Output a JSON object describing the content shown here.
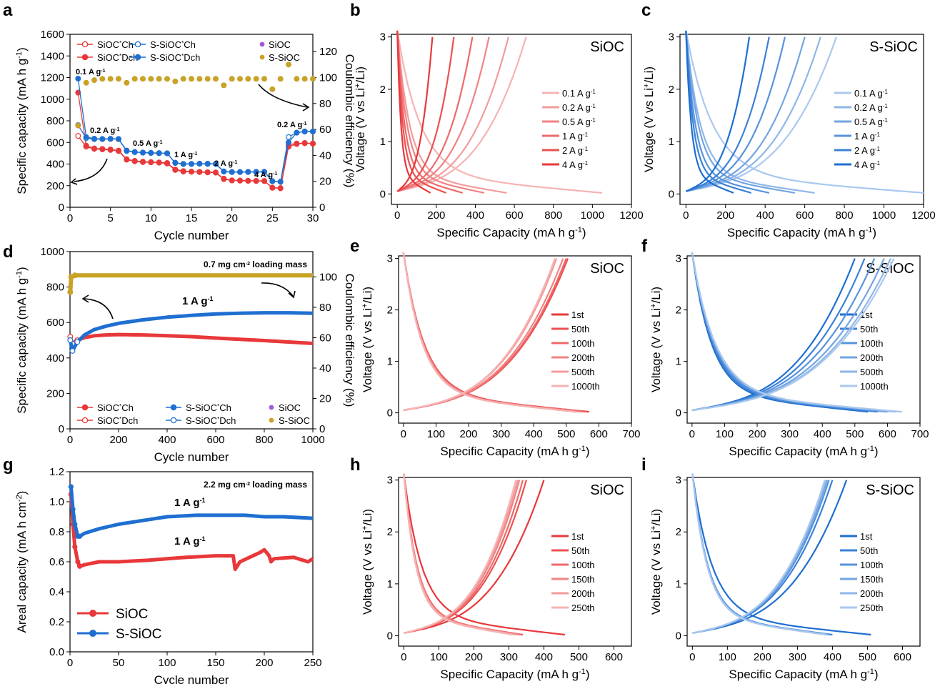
{
  "colors": {
    "red": "#e8383a",
    "blue": "#1f6fd1",
    "gold": "#c9a227",
    "purple": "#a05ad8"
  },
  "chart_data": [
    {
      "panel": "a",
      "type": "scatter",
      "xlabel": "Cycle number",
      "ylabel": "Specific capacity (mA h g-1)",
      "y2label": "Coulombic efficiency (%)",
      "xlim": [
        0,
        30
      ],
      "ylim": [
        0,
        1600
      ],
      "y2lim": [
        0,
        133.33
      ],
      "xticks": [
        0,
        5,
        10,
        15,
        20,
        25,
        30
      ],
      "yticks": [
        0,
        200,
        400,
        600,
        800,
        1000,
        1200,
        1400,
        1600
      ],
      "y2ticks": [
        0,
        20,
        40,
        60,
        80,
        100,
        120
      ],
      "legend_position": "top",
      "legend": [
        "SiOC*Ch",
        "SiOC*Dch",
        "S-SiOC*Ch",
        "S-SiOC*Dch",
        "SiOC",
        "S-SiOC"
      ],
      "rate_labels": [
        "0.1 A g-1",
        "0.2 A g-1",
        "0.5 A g-1",
        "1 A g-1",
        "2 A g-1",
        "4 A g-1",
        "0.2 A g-1"
      ],
      "series": [
        {
          "name": "SiOC*Ch",
          "axis": "left",
          "color": "red",
          "open": true,
          "line": true,
          "x": [
            1,
            2,
            3,
            4,
            5,
            6,
            7,
            8,
            9,
            10,
            11,
            12,
            13,
            14,
            15,
            16,
            17,
            18,
            19,
            20,
            21,
            22,
            23,
            24,
            25,
            26,
            27,
            28,
            29,
            30
          ],
          "y": [
            660,
            560,
            540,
            535,
            530,
            520,
            440,
            425,
            418,
            415,
            412,
            405,
            345,
            330,
            328,
            325,
            322,
            320,
            260,
            248,
            246,
            244,
            243,
            242,
            180,
            175,
            580,
            590,
            595,
            590
          ]
        },
        {
          "name": "SiOC*Dch",
          "axis": "left",
          "color": "red",
          "open": false,
          "line": true,
          "x": [
            1,
            2,
            3,
            4,
            5,
            6,
            7,
            8,
            9,
            10,
            11,
            12,
            13,
            14,
            15,
            16,
            17,
            18,
            19,
            20,
            21,
            22,
            23,
            24,
            25,
            26,
            27,
            28,
            29,
            30
          ],
          "y": [
            1060,
            570,
            545,
            540,
            535,
            525,
            445,
            430,
            422,
            418,
            415,
            410,
            350,
            335,
            330,
            328,
            325,
            322,
            265,
            250,
            248,
            246,
            245,
            244,
            182,
            178,
            560,
            585,
            592,
            588
          ]
        },
        {
          "name": "S-SiOC*Ch",
          "axis": "left",
          "color": "blue",
          "open": true,
          "line": true,
          "x": [
            1,
            2,
            3,
            4,
            5,
            6,
            7,
            8,
            9,
            10,
            11,
            12,
            13,
            14,
            15,
            16,
            17,
            18,
            19,
            20,
            21,
            22,
            23,
            24,
            25,
            26,
            27,
            28,
            29,
            30
          ],
          "y": [
            760,
            640,
            630,
            630,
            632,
            630,
            520,
            510,
            505,
            502,
            500,
            498,
            410,
            400,
            400,
            402,
            401,
            400,
            330,
            325,
            325,
            326,
            326,
            327,
            240,
            235,
            650,
            690,
            700,
            700
          ]
        },
        {
          "name": "S-SiOC*Dch",
          "axis": "left",
          "color": "blue",
          "open": false,
          "line": true,
          "x": [
            1,
            2,
            3,
            4,
            5,
            6,
            7,
            8,
            9,
            10,
            11,
            12,
            13,
            14,
            15,
            16,
            17,
            18,
            19,
            20,
            21,
            22,
            23,
            24,
            25,
            26,
            27,
            28,
            29,
            30
          ],
          "y": [
            1190,
            650,
            635,
            632,
            634,
            632,
            525,
            512,
            507,
            504,
            502,
            500,
            412,
            402,
            402,
            404,
            403,
            402,
            332,
            327,
            327,
            328,
            328,
            329,
            242,
            237,
            600,
            690,
            702,
            702
          ]
        },
        {
          "name": "SiOC",
          "axis": "right",
          "color": "purple",
          "open": false,
          "line": false,
          "x": [],
          "y": []
        },
        {
          "name": "S-SiOC",
          "axis": "right",
          "color": "gold",
          "open": false,
          "line": false,
          "x": [
            1,
            2,
            3,
            4,
            5,
            6,
            7,
            8,
            9,
            10,
            11,
            12,
            13,
            14,
            15,
            16,
            17,
            18,
            19,
            20,
            21,
            22,
            23,
            24,
            25,
            26,
            27,
            28,
            29,
            30
          ],
          "y": [
            63,
            96,
            98,
            99,
            99,
            99,
            96,
            99,
            99,
            99,
            99,
            99,
            97,
            99,
            99,
            99,
            99,
            99,
            94,
            99,
            99,
            99,
            99,
            99,
            91,
            99,
            110,
            99,
            99,
            99
          ]
        }
      ]
    },
    {
      "panel": "b",
      "type": "line",
      "title": "SiOC",
      "xlabel": "Specific Capacity (mA h g-1)",
      "ylabel": "Voltage (V vs Li+/Li)",
      "xlim": [
        -30,
        1200
      ],
      "ylim": [
        -0.2,
        3.05
      ],
      "xticks": [
        0,
        200,
        400,
        600,
        800,
        1000,
        1200
      ],
      "yticks": [
        0,
        1,
        2,
        3
      ],
      "legend_position": "center-right",
      "series": [
        {
          "name": "0.1 A g-1",
          "charge_end": 660,
          "discharge_end": 1050
        },
        {
          "name": "0.2 A g-1",
          "charge_end": 570,
          "discharge_end": 560
        },
        {
          "name": "0.5 A g-1",
          "charge_end": 470,
          "discharge_end": 445
        },
        {
          "name": "1 A g-1",
          "charge_end": 385,
          "discharge_end": 335
        },
        {
          "name": "2 A g-1",
          "charge_end": 290,
          "discharge_end": 250
        },
        {
          "name": "4 A g-1",
          "charge_end": 180,
          "discharge_end": 170
        }
      ]
    },
    {
      "panel": "c",
      "type": "line",
      "title": "S-SiOC",
      "xlabel": "Specific Capacity (mA h g-1)",
      "ylabel": "Voltage (V vs Li+/Li)",
      "xlim": [
        -30,
        1200
      ],
      "ylim": [
        -0.2,
        3.05
      ],
      "xticks": [
        0,
        200,
        400,
        600,
        800,
        1000,
        1200
      ],
      "yticks": [
        0,
        1,
        2,
        3
      ],
      "legend_position": "center-right",
      "series": [
        {
          "name": "0.1 A g-1",
          "charge_end": 760,
          "discharge_end": 1200
        },
        {
          "name": "0.2 A g-1",
          "charge_end": 680,
          "discharge_end": 650
        },
        {
          "name": "0.5 A g-1",
          "charge_end": 600,
          "discharge_end": 550
        },
        {
          "name": "1 A g-1",
          "charge_end": 500,
          "discharge_end": 420
        },
        {
          "name": "2 A g-1",
          "charge_end": 420,
          "discharge_end": 330
        },
        {
          "name": "4 A g-1",
          "charge_end": 320,
          "discharge_end": 240
        }
      ]
    },
    {
      "panel": "d",
      "type": "scatter",
      "annotation": "0.7 mg cm-2 loading mass",
      "rate_label": "1 A g-1",
      "xlabel": "Cycle number",
      "ylabel": "Specific capacity (mA h g-1)",
      "y2label": "Coulombic efficiency (%)",
      "xlim": [
        0,
        1000
      ],
      "ylim": [
        0,
        1000
      ],
      "y2lim": [
        0,
        116.67
      ],
      "xticks": [
        0,
        200,
        400,
        600,
        800,
        1000
      ],
      "yticks": [
        0,
        200,
        400,
        600,
        800,
        1000
      ],
      "y2ticks": [
        0,
        20,
        40,
        60,
        80,
        100
      ],
      "legend_position": "bottom-left",
      "legend": [
        "SiOC*Ch",
        "SiOC*Dch",
        "S-SiOC*Ch",
        "S-SiOC*Dch",
        "SiOC",
        "S-SiOC"
      ],
      "series": [
        {
          "name": "SiOC",
          "metric": "capacity",
          "color": "red",
          "x": [
            1,
            10,
            30,
            60,
            100,
            150,
            200,
            300,
            400,
            500,
            600,
            700,
            800,
            900,
            1000
          ],
          "y": [
            520,
            480,
            500,
            515,
            525,
            530,
            532,
            530,
            525,
            520,
            512,
            505,
            498,
            490,
            482
          ]
        },
        {
          "name": "S-SiOC",
          "metric": "capacity",
          "color": "blue",
          "x": [
            1,
            10,
            30,
            60,
            100,
            150,
            200,
            300,
            400,
            500,
            600,
            700,
            800,
            900,
            1000
          ],
          "y": [
            500,
            440,
            490,
            530,
            560,
            580,
            595,
            615,
            630,
            640,
            648,
            652,
            655,
            655,
            652
          ]
        },
        {
          "name": "S-SiOC",
          "metric": "coulombic_efficiency",
          "color": "gold",
          "x": [
            1,
            5,
            20,
            1000
          ],
          "y": [
            90,
            100,
            101,
            101
          ]
        }
      ]
    },
    {
      "panel": "e",
      "type": "line",
      "title": "SiOC",
      "xlabel": "Specific Capacity (mA h g-1)",
      "ylabel": "Voltage (V vs Li+/Li)",
      "xlim": [
        -15,
        700
      ],
      "ylim": [
        -0.2,
        3.05
      ],
      "xticks": [
        0,
        100,
        200,
        300,
        400,
        500,
        600,
        700
      ],
      "yticks": [
        0,
        1,
        2,
        3
      ],
      "legend_position": "center-right",
      "series": [
        {
          "name": "1st",
          "charge_end": 500,
          "discharge_end": 570
        },
        {
          "name": "50th",
          "charge_end": 505,
          "discharge_end": 565
        },
        {
          "name": "100th",
          "charge_end": 500,
          "discharge_end": 555
        },
        {
          "name": "200th",
          "charge_end": 490,
          "discharge_end": 545
        },
        {
          "name": "500th",
          "charge_end": 470,
          "discharge_end": 530
        },
        {
          "name": "1000th",
          "charge_end": 465,
          "discharge_end": 525
        }
      ]
    },
    {
      "panel": "f",
      "type": "line",
      "title": "S-SiOC",
      "xlabel": "Specific Capacity (mA h g-1)",
      "ylabel": "Voltage (V vs Li+/Li)",
      "xlim": [
        -15,
        700
      ],
      "ylim": [
        -0.2,
        3.05
      ],
      "xticks": [
        0,
        100,
        200,
        300,
        400,
        500,
        600,
        700
      ],
      "yticks": [
        0,
        1,
        2,
        3
      ],
      "legend_position": "center-right",
      "series": [
        {
          "name": "1st",
          "charge_end": 500,
          "discharge_end": 540
        },
        {
          "name": "50th",
          "charge_end": 530,
          "discharge_end": 570
        },
        {
          "name": "100th",
          "charge_end": 560,
          "discharge_end": 600
        },
        {
          "name": "200th",
          "charge_end": 590,
          "discharge_end": 625
        },
        {
          "name": "500th",
          "charge_end": 610,
          "discharge_end": 640
        },
        {
          "name": "1000th",
          "charge_end": 620,
          "discharge_end": 645
        }
      ]
    },
    {
      "panel": "g",
      "type": "scatter",
      "annotation": "2.2 mg cm-2 loading mass",
      "rate_labels": [
        "1 A g-1",
        "1 A g-1"
      ],
      "xlabel": "Cycle number",
      "ylabel": "Areal capacity (mA h cm-2)",
      "xlim": [
        0,
        250
      ],
      "ylim": [
        0,
        1.2
      ],
      "xticks": [
        0,
        50,
        100,
        150,
        200,
        250
      ],
      "yticks": [
        0,
        0.2,
        0.4,
        0.6,
        0.8,
        1.0,
        1.2
      ],
      "legend_position": "bottom-left",
      "legend": [
        "SiOC",
        "S-SiOC"
      ],
      "series": [
        {
          "name": "SiOC",
          "color": "red",
          "x": [
            1,
            3,
            5,
            8,
            10,
            15,
            30,
            50,
            80,
            100,
            120,
            150,
            168,
            170,
            175,
            185,
            195,
            200,
            205,
            207,
            210,
            230,
            245,
            250
          ],
          "y": [
            1.05,
            0.85,
            0.7,
            0.6,
            0.57,
            0.58,
            0.6,
            0.6,
            0.61,
            0.62,
            0.63,
            0.64,
            0.64,
            0.55,
            0.6,
            0.63,
            0.66,
            0.68,
            0.64,
            0.6,
            0.62,
            0.63,
            0.6,
            0.62
          ]
        },
        {
          "name": "S-SiOC",
          "color": "blue",
          "x": [
            1,
            3,
            5,
            8,
            10,
            15,
            30,
            50,
            80,
            100,
            130,
            150,
            180,
            200,
            220,
            250
          ],
          "y": [
            1.1,
            0.95,
            0.85,
            0.77,
            0.77,
            0.79,
            0.82,
            0.85,
            0.88,
            0.9,
            0.91,
            0.91,
            0.91,
            0.9,
            0.9,
            0.89
          ]
        }
      ]
    },
    {
      "panel": "h",
      "type": "line",
      "title": "SiOC",
      "xlabel": "Specific Capacity (mA h g-1)",
      "ylabel": "Voltage (V vs Li+/Li)",
      "xlim": [
        -15,
        650
      ],
      "ylim": [
        -0.2,
        3.05
      ],
      "xticks": [
        0,
        100,
        200,
        300,
        400,
        500,
        600
      ],
      "yticks": [
        0,
        1,
        2,
        3
      ],
      "legend_position": "center-right",
      "series": [
        {
          "name": "1st",
          "charge_end": 400,
          "discharge_end": 460
        },
        {
          "name": "50th",
          "charge_end": 350,
          "discharge_end": 340
        },
        {
          "name": "100th",
          "charge_end": 340,
          "discharge_end": 335
        },
        {
          "name": "150th",
          "charge_end": 330,
          "discharge_end": 330
        },
        {
          "name": "200th",
          "charge_end": 325,
          "discharge_end": 320
        },
        {
          "name": "250th",
          "charge_end": 320,
          "discharge_end": 310
        }
      ]
    },
    {
      "panel": "i",
      "type": "line",
      "title": "S-SiOC",
      "xlabel": "Specific Capacity (mA h g-1)",
      "ylabel": "Voltage (V vs Li+/Li)",
      "xlim": [
        -15,
        650
      ],
      "ylim": [
        -0.2,
        3.05
      ],
      "xticks": [
        0,
        100,
        200,
        300,
        400,
        500,
        600
      ],
      "yticks": [
        0,
        1,
        2,
        3
      ],
      "legend_position": "center-right",
      "series": [
        {
          "name": "1st",
          "charge_end": 440,
          "discharge_end": 510
        },
        {
          "name": "50th",
          "charge_end": 400,
          "discharge_end": 400
        },
        {
          "name": "100th",
          "charge_end": 390,
          "discharge_end": 395
        },
        {
          "name": "150th",
          "charge_end": 385,
          "discharge_end": 390
        },
        {
          "name": "200th",
          "charge_end": 380,
          "discharge_end": 385
        },
        {
          "name": "250th",
          "charge_end": 378,
          "discharge_end": 380
        }
      ]
    }
  ]
}
